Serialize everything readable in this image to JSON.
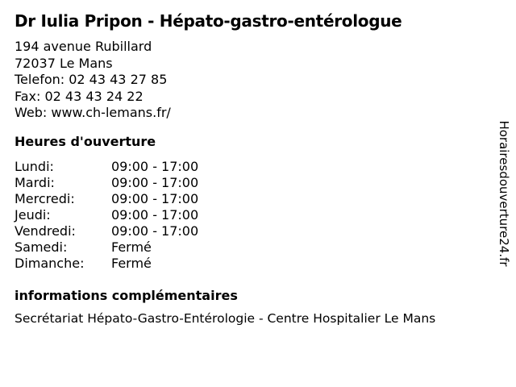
{
  "page_title": "Dr Iulia Pripon - Hépato-gastro-entérologue",
  "contact": {
    "address_line1": "194 avenue Rubillard",
    "address_line2": "72037 Le Mans",
    "phone_line": "Telefon: 02 43 43 27 85",
    "fax_line": "Fax: 02 43 43 24 22",
    "web_line": "Web: www.ch-lemans.fr/"
  },
  "hours": {
    "heading": "Heures d'ouverture",
    "rows": [
      {
        "day": "Lundi:",
        "time": "09:00 - 17:00"
      },
      {
        "day": "Mardi:",
        "time": "09:00 - 17:00"
      },
      {
        "day": "Mercredi:",
        "time": "09:00 - 17:00"
      },
      {
        "day": "Jeudi:",
        "time": "09:00 - 17:00"
      },
      {
        "day": "Vendredi:",
        "time": "09:00 - 17:00"
      },
      {
        "day": "Samedi:",
        "time": "Fermé"
      },
      {
        "day": "Dimanche:",
        "time": "Fermé"
      }
    ]
  },
  "info": {
    "heading": "informations complémentaires",
    "text": "Secrétariat Hépato-Gastro-Entérologie - Centre Hospitalier Le Mans"
  },
  "watermark_text": "Horairesdouverture24.fr",
  "colors": {
    "text": "#000000",
    "background": "#ffffff"
  }
}
